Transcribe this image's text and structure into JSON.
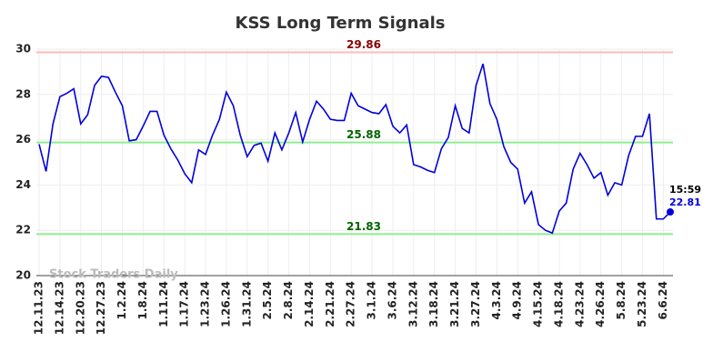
{
  "chart_data": {
    "type": "line",
    "title": "KSS Long Term Signals",
    "watermark": "Stock Traders Daily",
    "categories": [
      "12.11.23",
      null,
      null,
      "12.14.23",
      null,
      null,
      "12.20.23",
      null,
      null,
      "12.27.23",
      null,
      null,
      "1.2.24",
      null,
      null,
      "1.8.24",
      null,
      null,
      "1.11.24",
      null,
      null,
      "1.17.24",
      null,
      null,
      "1.23.24",
      null,
      null,
      "1.26.24",
      null,
      null,
      "1.31.24",
      null,
      null,
      "2.5.24",
      null,
      null,
      "2.8.24",
      null,
      null,
      "2.14.24",
      null,
      null,
      "2.21.24",
      null,
      null,
      "2.27.24",
      null,
      null,
      "3.1.24",
      null,
      null,
      "3.6.24",
      null,
      null,
      "3.12.24",
      null,
      null,
      "3.18.24",
      null,
      null,
      "3.21.24",
      null,
      null,
      "3.27.24",
      null,
      null,
      "4.3.24",
      null,
      null,
      "4.9.24",
      null,
      null,
      "4.15.24",
      null,
      null,
      "4.18.24",
      null,
      null,
      "4.23.24",
      null,
      null,
      "4.26.24",
      null,
      null,
      "5.8.24",
      null,
      null,
      "5.23.24",
      null,
      null,
      "6.6.24",
      null
    ],
    "series": [
      {
        "name": "KSS",
        "color": "#0000dd",
        "values": [
          25.8,
          24.6,
          26.7,
          27.9,
          28.05,
          28.25,
          26.7,
          27.1,
          28.4,
          28.8,
          28.75,
          28.1,
          27.5,
          25.95,
          26.0,
          26.6,
          27.25,
          27.25,
          26.2,
          25.6,
          25.1,
          24.5,
          24.1,
          25.55,
          25.35,
          26.2,
          26.9,
          28.1,
          27.5,
          26.2,
          25.25,
          25.75,
          25.85,
          25.05,
          26.3,
          25.55,
          26.3,
          27.2,
          25.9,
          26.9,
          27.7,
          27.35,
          26.9,
          26.85,
          26.85,
          28.05,
          27.5,
          27.35,
          27.2,
          27.15,
          27.55,
          26.6,
          26.3,
          26.65,
          24.9,
          24.8,
          24.65,
          24.55,
          25.6,
          26.1,
          27.5,
          26.5,
          26.3,
          28.4,
          29.35,
          27.6,
          26.9,
          25.7,
          25.0,
          24.7,
          23.2,
          23.7,
          22.25,
          22.0,
          21.88,
          22.85,
          23.2,
          24.7,
          25.4,
          24.9,
          24.3,
          24.55,
          23.55,
          24.1,
          24.0,
          25.3,
          26.15,
          26.15,
          27.15,
          22.5,
          22.5,
          22.81
        ]
      }
    ],
    "last_time": "15:59",
    "hlines": [
      {
        "value": 29.86,
        "color": "#ffbbbb",
        "label_color": "#8b0000"
      },
      {
        "value": 25.88,
        "color": "#90ee90",
        "label_color": "#006400"
      },
      {
        "value": 21.83,
        "color": "#90ee90",
        "label_color": "#006400"
      }
    ],
    "ylim": [
      20,
      30
    ],
    "yticks": [
      20,
      22,
      24,
      26,
      28,
      30
    ],
    "grid": true
  }
}
